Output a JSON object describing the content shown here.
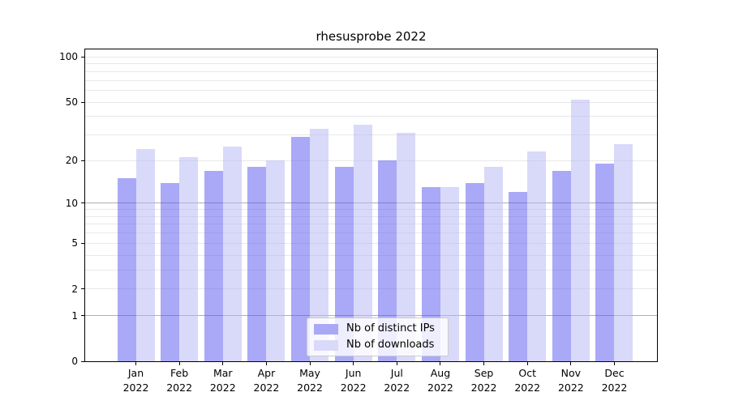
{
  "chart_data": {
    "type": "bar",
    "title": "rhesusprobe 2022",
    "categories": [
      "Jan 2022",
      "Feb 2022",
      "Mar 2022",
      "Apr 2022",
      "May 2022",
      "Jun 2022",
      "Jul 2022",
      "Aug 2022",
      "Sep 2022",
      "Oct 2022",
      "Nov 2022",
      "Dec 2022"
    ],
    "series": [
      {
        "name": "Nb of distinct IPs",
        "color": "#a9a9f8",
        "values": [
          15,
          14,
          17,
          18,
          29,
          18,
          20,
          13,
          14,
          12,
          17,
          19
        ]
      },
      {
        "name": "Nb of downloads",
        "color": "#d9d9fa",
        "values": [
          24,
          21,
          25,
          20,
          33,
          35,
          31,
          13,
          18,
          23,
          52,
          26
        ]
      }
    ],
    "y_axis": {
      "scale": "log10(value+1)",
      "tick_labels": [
        100,
        50,
        20,
        10,
        5,
        2,
        1,
        0
      ],
      "major_gridlines": [
        1,
        10
      ],
      "minor_gridlines": [
        2,
        3,
        4,
        5,
        6,
        7,
        8,
        9,
        20,
        30,
        40,
        50,
        60,
        70,
        80,
        90,
        100
      ],
      "ylim": [
        0,
        112
      ]
    },
    "xlabel": "",
    "ylabel": "",
    "grid": "horizontal only",
    "legend": {
      "position": "lower center",
      "entries": [
        "Nb of distinct IPs",
        "Nb of downloads"
      ]
    }
  },
  "colors": {
    "background": "#ffffff",
    "bar_distinct_ips": "#a9a9f8",
    "bar_downloads": "#d9d9fa",
    "grid_minor": "#e8e8e8",
    "grid_major": "#b0b0b0",
    "axis": "#000000",
    "legend_border": "#cccccc"
  }
}
